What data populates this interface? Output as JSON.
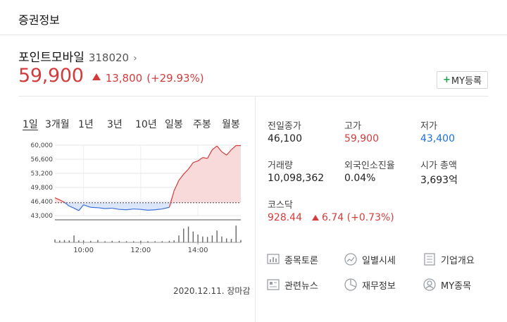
{
  "section": {
    "title": "증권정보"
  },
  "stock": {
    "name": "포인트모바일",
    "code": "318020",
    "price": "59,900",
    "change_amount": "13,800",
    "change_percent": "(+29.93%)",
    "my_button": "MY등록"
  },
  "tabs": [
    "1일",
    "3개월",
    "1년",
    "3년",
    "10년",
    "일봉",
    "주봉",
    "월봉"
  ],
  "chart_caption": "2020.12.11. 장마감",
  "chart_data": {
    "type": "line",
    "y_tick_labels": [
      "60,000",
      "56,600",
      "53,200",
      "49,800",
      "46,400",
      "43,000"
    ],
    "x_tick_labels": [
      "10:00",
      "12:00",
      "14:00"
    ],
    "ylim": [
      43000,
      60000
    ],
    "baseline": 46100,
    "x": [
      "09:00",
      "09:10",
      "09:20",
      "09:30",
      "09:40",
      "09:50",
      "10:00",
      "10:15",
      "10:30",
      "10:45",
      "11:00",
      "11:15",
      "11:30",
      "11:45",
      "12:00",
      "12:15",
      "12:30",
      "12:45",
      "13:00",
      "13:10",
      "13:20",
      "13:30",
      "13:40",
      "13:50",
      "14:00",
      "14:10",
      "14:20",
      "14:30",
      "14:40",
      "14:50",
      "15:00",
      "15:10",
      "15:20",
      "15:30"
    ],
    "values": [
      47300,
      46800,
      46200,
      45300,
      44800,
      44200,
      45600,
      45000,
      44900,
      44700,
      44800,
      44500,
      44400,
      44600,
      44500,
      44300,
      44400,
      44600,
      45000,
      49000,
      51500,
      53000,
      54200,
      55800,
      56200,
      57000,
      56800,
      58900,
      59800,
      58400,
      57600,
      58900,
      59900,
      59900
    ],
    "volume": [
      0.15,
      0.1,
      0.12,
      0.1,
      0.35,
      0.1,
      0.1,
      0.08,
      0.12,
      0.06,
      0.08,
      0.07,
      0.06,
      0.06,
      0.08,
      0.06,
      0.06,
      0.06,
      0.08,
      0.1,
      0.35,
      0.7,
      0.8,
      0.55,
      0.4,
      0.3,
      0.28,
      0.35,
      0.6,
      0.3,
      0.2,
      0.18,
      0.85,
      0.12
    ]
  },
  "stats": {
    "prev_close": {
      "label": "전일종가",
      "value": "46,100"
    },
    "high": {
      "label": "고가",
      "value": "59,900"
    },
    "low": {
      "label": "저가",
      "value": "43,400"
    },
    "volume": {
      "label": "거래량",
      "value": "10,098,362"
    },
    "foreign": {
      "label": "외국인소진율",
      "value": "0.04%"
    },
    "market_cap": {
      "label": "시가 총액",
      "value": "3,693억"
    },
    "kosdaq": {
      "label": "코스닥",
      "value": "928.44",
      "change": "6.74 (+0.73%)"
    }
  },
  "links": {
    "discussion": "종목토론",
    "daily": "일별시세",
    "company": "기업개요",
    "news": "관련뉴스",
    "finance": "재무정보",
    "my_stocks": "MY종목"
  },
  "colors": {
    "up": "#d33c3c",
    "down": "#1e6fd9",
    "accent_green": "#1aa34a"
  }
}
